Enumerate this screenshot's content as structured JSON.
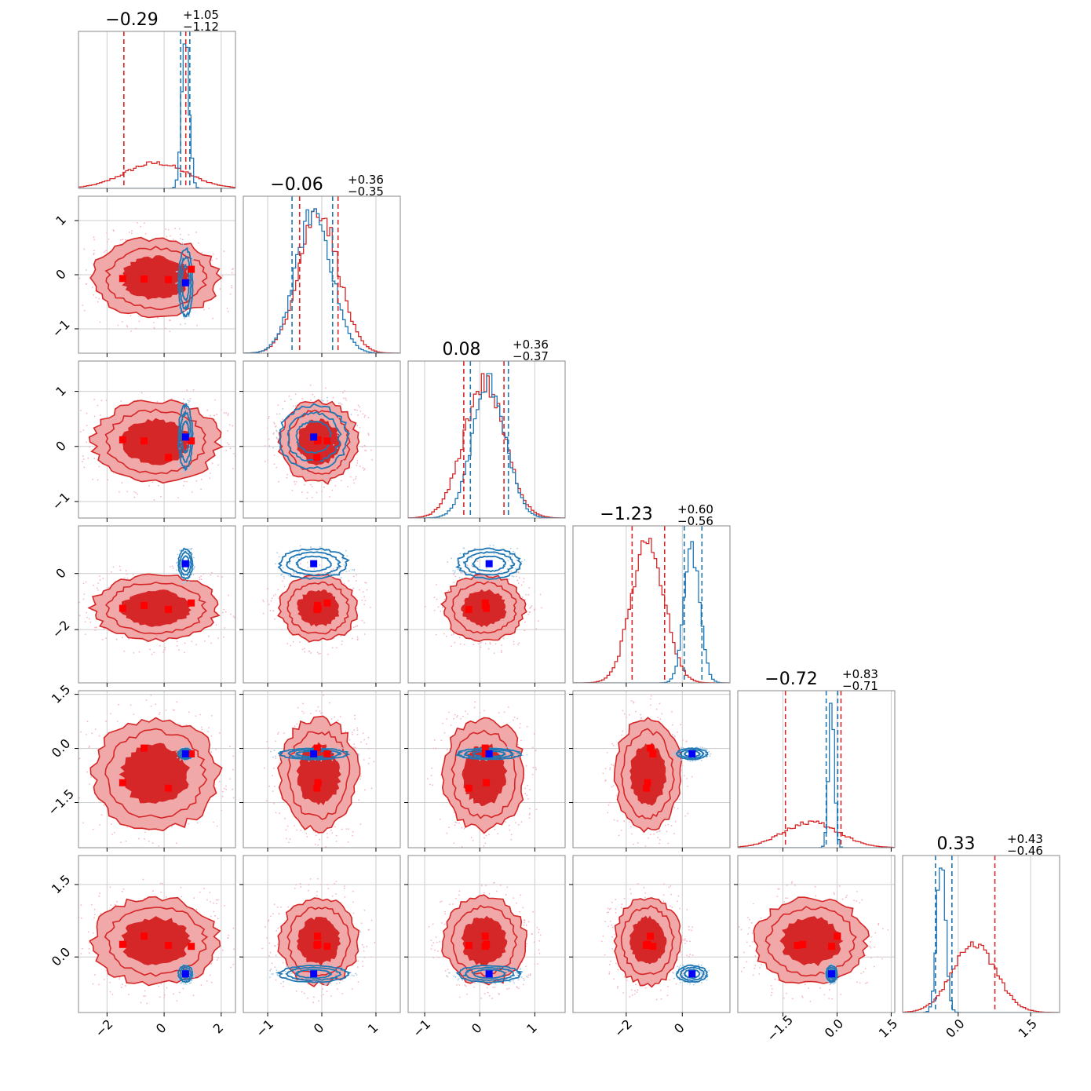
{
  "colors": {
    "red": "#d62728",
    "red_light": "#f0a8a8",
    "red_mid": "#e86a6a",
    "blue": "#1f77b4",
    "blue_marker": "#0000ff",
    "red_marker": "#ff0000",
    "grid": "#cccccc",
    "frame": "#888888"
  },
  "chart_data": {
    "type": "corner",
    "n_params": 6,
    "grid": true,
    "series": [
      {
        "color": "red",
        "style": "filled-contours"
      },
      {
        "color": "blue",
        "style": "line-contours"
      }
    ],
    "axes": [
      {
        "range": [
          -3,
          2.5
        ],
        "ticks": [
          -2,
          0,
          2
        ],
        "tick_labels": [
          "−2",
          "0",
          "2"
        ]
      },
      {
        "range": [
          -1.45,
          1.45
        ],
        "ticks": [
          -1,
          0,
          1
        ],
        "tick_labels": [
          "−1",
          "0",
          "1"
        ]
      },
      {
        "range": [
          -1.3,
          1.55
        ],
        "ticks": [
          -1,
          0,
          1
        ],
        "tick_labels": [
          "−1",
          "0",
          "1"
        ]
      },
      {
        "range": [
          -3.9,
          1.7
        ],
        "ticks": [
          -2,
          0
        ],
        "tick_labels": [
          "−2",
          "0"
        ]
      },
      {
        "range": [
          -2.75,
          1.6
        ],
        "ticks": [
          -1.5,
          0,
          1.5
        ],
        "tick_labels": [
          "−1.5",
          "0.0",
          "1.5"
        ]
      },
      {
        "range": [
          -1.15,
          2.1
        ],
        "ticks": [
          0,
          1.5
        ],
        "tick_labels": [
          "0.0",
          "1.5"
        ]
      }
    ],
    "titles": [
      {
        "main": "−0.29",
        "up": "+1.05",
        "down": "−1.12"
      },
      {
        "main": "−0.06",
        "up": "+0.36",
        "down": "−0.35"
      },
      {
        "main": "0.08",
        "up": "+0.36",
        "down": "−0.37"
      },
      {
        "main": "−1.23",
        "up": "+0.60",
        "down": "−0.56"
      },
      {
        "main": "−0.72",
        "up": "+0.83",
        "down": "−0.71"
      },
      {
        "main": "0.33",
        "up": "+0.43",
        "down": "−0.46"
      }
    ],
    "marginals": [
      {
        "red": {
          "mu": -0.29,
          "sigma": 1.1
        },
        "blue": {
          "mu": 0.75,
          "sigma": 0.13
        },
        "red_quantiles": [
          -1.41,
          0.76
        ],
        "blue_quantiles": [
          0.58,
          0.9
        ]
      },
      {
        "red": {
          "mu": -0.06,
          "sigma": 0.36
        },
        "blue": {
          "mu": -0.15,
          "sigma": 0.33
        },
        "red_quantiles": [
          -0.41,
          0.3
        ],
        "blue_quantiles": [
          -0.55,
          0.2
        ]
      },
      {
        "red": {
          "mu": 0.08,
          "sigma": 0.37
        },
        "blue": {
          "mu": 0.17,
          "sigma": 0.3
        },
        "red_quantiles": [
          -0.29,
          0.44
        ],
        "blue_quantiles": [
          -0.17,
          0.52
        ]
      },
      {
        "red": {
          "mu": -1.23,
          "sigma": 0.58
        },
        "blue": {
          "mu": 0.35,
          "sigma": 0.28
        },
        "red_quantiles": [
          -1.79,
          -0.63
        ],
        "blue_quantiles": [
          0.07,
          0.7
        ]
      },
      {
        "red": {
          "mu": -0.72,
          "sigma": 0.77
        },
        "blue": {
          "mu": -0.15,
          "sigma": 0.08
        },
        "red_quantiles": [
          -1.43,
          0.11
        ],
        "blue_quantiles": [
          -0.3,
          0.02
        ]
      },
      {
        "red": {
          "mu": 0.33,
          "sigma": 0.45
        },
        "blue": {
          "mu": -0.35,
          "sigma": 0.09
        },
        "red_quantiles": [
          -0.13,
          0.76
        ],
        "blue_quantiles": [
          -0.47,
          -0.13
        ]
      }
    ],
    "blue_point": [
      0.75,
      -0.15,
      0.17,
      0.35,
      -0.15,
      -0.35
    ],
    "red_points": [
      [
        -1.45,
        -0.07,
        0.12,
        -1.24,
        -0.95,
        0.26
      ],
      [
        -0.7,
        -0.08,
        0.1,
        -1.14,
        0.01,
        0.43
      ],
      [
        0.15,
        -0.09,
        -0.2,
        -1.28,
        -1.1,
        0.24
      ],
      [
        0.95,
        0.1,
        0.1,
        -1.05,
        -0.15,
        0.22
      ]
    ]
  }
}
